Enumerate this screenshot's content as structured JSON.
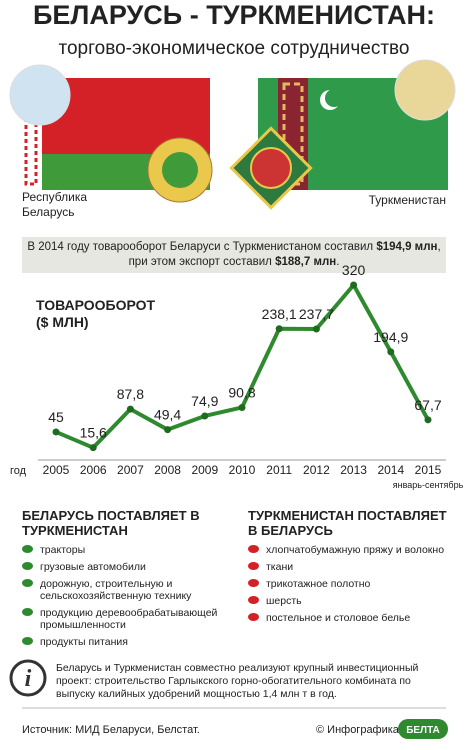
{
  "header": {
    "title": "БЕЛАРУСЬ - ТУРКМЕНИСТАН:",
    "subtitle": "торгово-экономическое сотрудничество"
  },
  "flags": {
    "left": "Республика Беларусь",
    "right": "Туркменистан"
  },
  "summary": {
    "parts": [
      "В 2014 году товарооборот Беларуси с Туркменистаном составил ",
      "$194,9 млн",
      ", при этом экспорт составил ",
      "$188,7 млн",
      "."
    ]
  },
  "chart_data": {
    "type": "line",
    "title": "ТОВАРООБОРОТ",
    "subtitle": "($ МЛН)",
    "x_label": "год",
    "categories": [
      "2005",
      "2006",
      "2007",
      "2008",
      "2009",
      "2010",
      "2011",
      "2012",
      "2013",
      "2014",
      "2015"
    ],
    "x_note": "январь-сентябрь",
    "values": [
      45,
      15.6,
      87.8,
      49.4,
      74.9,
      90.8,
      238.1,
      237.7,
      320,
      194.9,
      67.7
    ],
    "value_labels": [
      "45",
      "15,6",
      "87,8",
      "49,4",
      "74,9",
      "90,8",
      "238,1",
      "237,7",
      "320",
      "194,9",
      "67,7"
    ],
    "color": "#2f8a2f"
  },
  "exports": {
    "title": "БЕЛАРУСЬ ПОСТАВЛЯЕТ В ТУРКМЕНИСТАН",
    "items": [
      "тракторы",
      "грузовые автомобили",
      "дорожную, строительную и сельскохозяйственную технику",
      "продукцию деревообрабатывающей промышленности",
      "продукты питания"
    ]
  },
  "imports": {
    "title": "ТУРКМЕНИСТАН ПОСТАВЛЯЕТ В БЕЛАРУСЬ",
    "items": [
      "хлопчатобумажную пряжу и волокно",
      "ткани",
      "трикотажное полотно",
      "шерсть",
      "постельное и столовое белье"
    ]
  },
  "note": "Беларусь и Туркменистан совместно реализуют крупный инвестиционный проект: строительство Гарлыкского горно-обогатительного комбината по выпуску калийных удобрений мощностью 1,4 млн т в год.",
  "footer": {
    "source": "Источник: МИД Беларуси, Белстат.",
    "credit": "© Инфографика",
    "logo": "БЕЛТА"
  }
}
